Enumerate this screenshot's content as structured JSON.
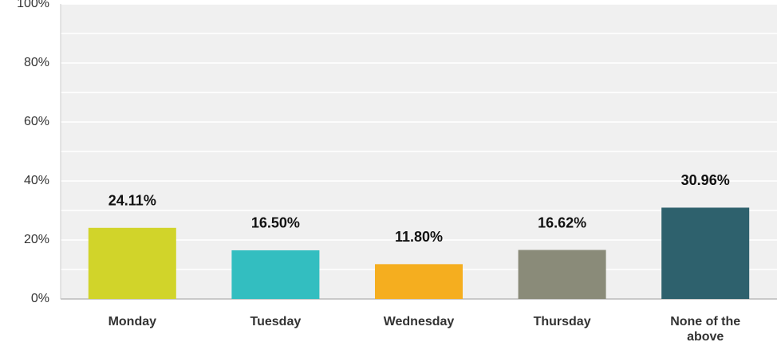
{
  "chart_data": {
    "type": "bar",
    "categories": [
      "Monday",
      "Tuesday",
      "Wednesday",
      "Thursday",
      "None of the above"
    ],
    "values": [
      24.11,
      16.5,
      11.8,
      16.62,
      30.96
    ],
    "value_labels": [
      "24.11%",
      "16.50%",
      "11.80%",
      "16.62%",
      "30.96%"
    ],
    "colors": [
      "#d1d42a",
      "#33bec0",
      "#f5ae1f",
      "#8a8b79",
      "#2e616d"
    ],
    "ylim": [
      0,
      100
    ],
    "yticks": [
      {
        "value": 0,
        "label": "0%"
      },
      {
        "value": 20,
        "label": "20%"
      },
      {
        "value": 40,
        "label": "40%"
      },
      {
        "value": 60,
        "label": "60%"
      },
      {
        "value": 80,
        "label": "80%"
      },
      {
        "value": 100,
        "label": "100%"
      }
    ],
    "minor_yticks": [
      10,
      30,
      50,
      70,
      90
    ],
    "grid": true
  }
}
